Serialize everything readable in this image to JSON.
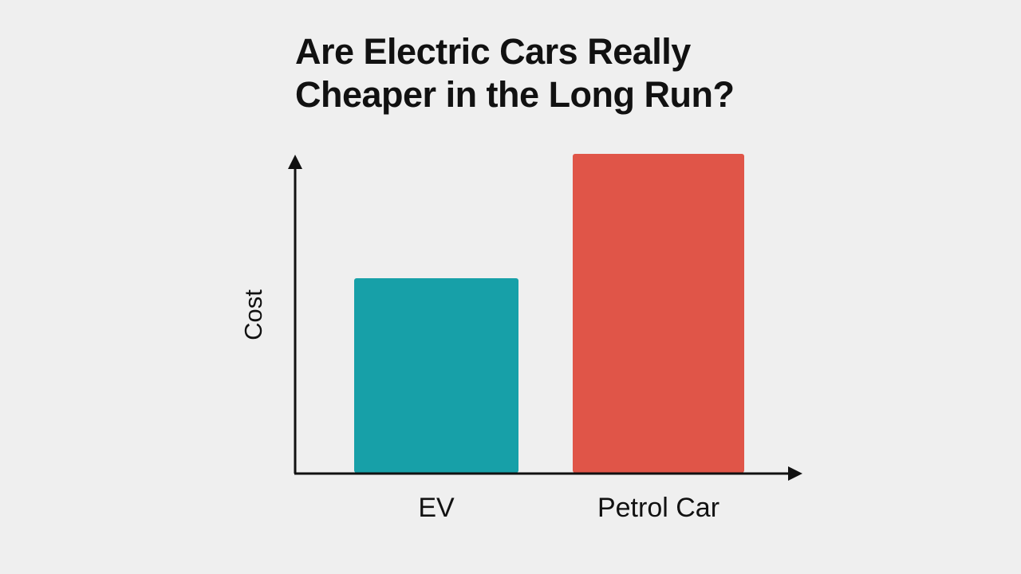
{
  "chart_data": {
    "type": "bar",
    "title_lines": [
      "Are Electric Cars Really",
      "Cheaper in the Long Run?"
    ],
    "categories": [
      "EV",
      "Petrol Car"
    ],
    "values": [
      0.61,
      1.0
    ],
    "colors": [
      "#17a0a8",
      "#e05548"
    ],
    "ylabel": "Cost",
    "xlabel": "",
    "ylim": [
      0,
      1.0
    ],
    "y_ticks_shown": false,
    "grid": false,
    "legend": "none"
  }
}
